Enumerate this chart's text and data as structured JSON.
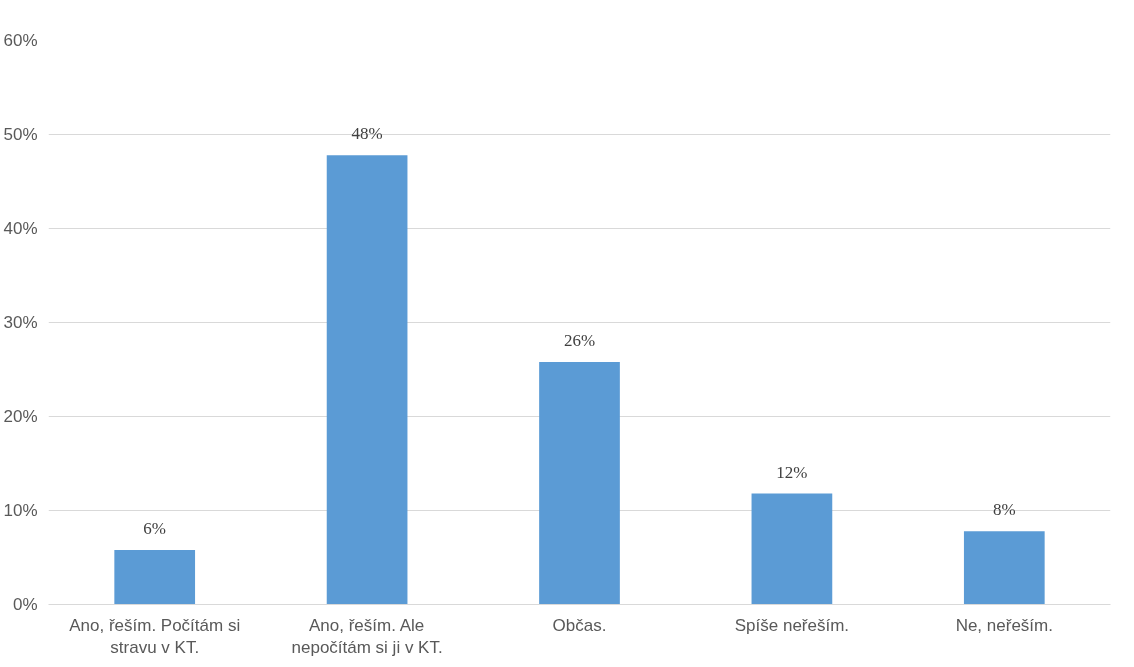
{
  "chart_data": {
    "type": "bar",
    "categories": [
      "Ano, řeším. Počítám si stravu v KT.",
      "Ano, řeším. Ale nepočítám si ji v KT.",
      "Občas.",
      "Spíše neřeším.",
      "Ne, neřeším."
    ],
    "values": [
      5.8,
      47.8,
      25.8,
      11.8,
      7.8
    ],
    "value_labels": [
      "6%",
      "48%",
      "26%",
      "12%",
      "8%"
    ],
    "color": "#5b9bd5",
    "ylim": [
      0,
      60
    ],
    "yticks": [
      {
        "value": 0,
        "label": "0%"
      },
      {
        "value": 10,
        "label": "10%"
      },
      {
        "value": 20,
        "label": "20%"
      },
      {
        "value": 30,
        "label": "30%"
      },
      {
        "value": 40,
        "label": "40%"
      },
      {
        "value": 50,
        "label": "50%"
      },
      {
        "value": 60,
        "label": "60%"
      }
    ],
    "grid": "y"
  }
}
